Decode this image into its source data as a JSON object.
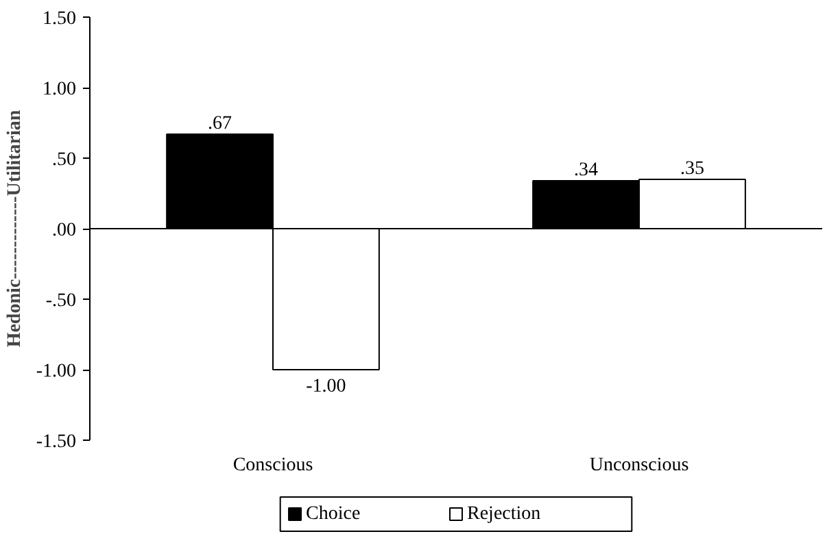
{
  "chart_data": {
    "type": "bar",
    "ylabel": "Hedonic-------------Utilitarian",
    "categories": [
      "Conscious",
      "Unconscious"
    ],
    "series": [
      {
        "name": "Choice",
        "color": "#000000",
        "values": [
          0.67,
          0.34
        ],
        "value_labels": [
          ".67",
          ".34"
        ]
      },
      {
        "name": "Rejection",
        "color": "#ffffff",
        "values": [
          -1.0,
          0.35
        ],
        "value_labels": [
          "-1.00",
          ".35"
        ]
      }
    ],
    "ylim": [
      -1.5,
      1.5
    ],
    "yticks": [
      {
        "value": 1.5,
        "label": "1.50"
      },
      {
        "value": 1.0,
        "label": "1.00"
      },
      {
        "value": 0.5,
        "label": ".50"
      },
      {
        "value": 0.0,
        "label": ".00"
      },
      {
        "value": -0.5,
        "label": "-.50"
      },
      {
        "value": -1.0,
        "label": "-1.00"
      },
      {
        "value": -1.5,
        "label": "-1.50"
      }
    ],
    "legend": "bottom"
  }
}
